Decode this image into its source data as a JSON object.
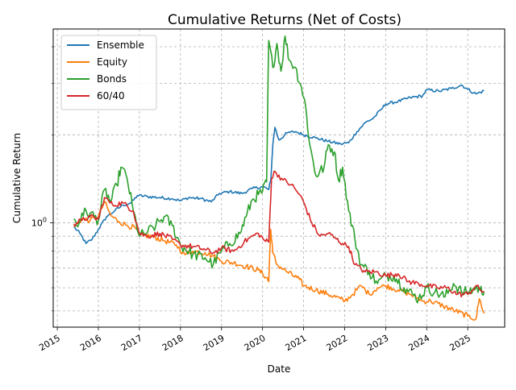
{
  "chart_data": {
    "type": "line",
    "title": "Cumulative Returns (Net of Costs)",
    "xlabel": "Date",
    "ylabel": "Cumulative Return",
    "y_scale": "log",
    "grid": true,
    "grid_style": "dashed",
    "legend_position": "top-left",
    "xlim": [
      2014.9,
      2025.9
    ],
    "ylim": [
      0.44,
      4.6
    ],
    "x_ticks": [
      {
        "value": 2015,
        "label": "2015"
      },
      {
        "value": 2016,
        "label": "2016"
      },
      {
        "value": 2017,
        "label": "2017"
      },
      {
        "value": 2018,
        "label": "2018"
      },
      {
        "value": 2019,
        "label": "2019"
      },
      {
        "value": 2020,
        "label": "2020"
      },
      {
        "value": 2021,
        "label": "2021"
      },
      {
        "value": 2022,
        "label": "2022"
      },
      {
        "value": 2023,
        "label": "2023"
      },
      {
        "value": 2024,
        "label": "2024"
      },
      {
        "value": 2025,
        "label": "2025"
      }
    ],
    "y_major_ticks": [
      {
        "value": 1,
        "label": "10^0"
      }
    ],
    "y_minor_ticks": [
      0.5,
      0.6,
      0.7,
      0.8,
      0.9,
      2,
      3,
      4
    ],
    "series": [
      {
        "name": "Ensemble",
        "color": "#1f77b4",
        "points": [
          [
            2015.4,
            0.97
          ],
          [
            2015.55,
            0.92
          ],
          [
            2015.7,
            0.85
          ],
          [
            2015.85,
            0.88
          ],
          [
            2016.0,
            0.95
          ],
          [
            2016.2,
            1.05
          ],
          [
            2016.4,
            1.1
          ],
          [
            2016.6,
            1.15
          ],
          [
            2016.8,
            1.17
          ],
          [
            2016.95,
            1.24
          ],
          [
            2017.2,
            1.23
          ],
          [
            2017.5,
            1.22
          ],
          [
            2017.8,
            1.21
          ],
          [
            2018.0,
            1.19
          ],
          [
            2018.2,
            1.22
          ],
          [
            2018.5,
            1.21
          ],
          [
            2018.75,
            1.18
          ],
          [
            2018.95,
            1.26
          ],
          [
            2019.2,
            1.28
          ],
          [
            2019.5,
            1.26
          ],
          [
            2019.75,
            1.31
          ],
          [
            2020.0,
            1.33
          ],
          [
            2020.15,
            1.3
          ],
          [
            2020.2,
            1.4
          ],
          [
            2020.25,
            1.85
          ],
          [
            2020.3,
            2.12
          ],
          [
            2020.4,
            1.92
          ],
          [
            2020.6,
            2.03
          ],
          [
            2020.8,
            2.05
          ],
          [
            2021.0,
            2.0
          ],
          [
            2021.3,
            1.95
          ],
          [
            2021.6,
            1.9
          ],
          [
            2021.9,
            1.86
          ],
          [
            2022.1,
            1.88
          ],
          [
            2022.3,
            2.05
          ],
          [
            2022.5,
            2.2
          ],
          [
            2022.7,
            2.28
          ],
          [
            2022.9,
            2.45
          ],
          [
            2023.0,
            2.55
          ],
          [
            2023.3,
            2.6
          ],
          [
            2023.6,
            2.68
          ],
          [
            2023.9,
            2.72
          ],
          [
            2024.0,
            2.85
          ],
          [
            2024.3,
            2.82
          ],
          [
            2024.6,
            2.88
          ],
          [
            2024.85,
            2.96
          ],
          [
            2025.0,
            2.86
          ],
          [
            2025.2,
            2.76
          ],
          [
            2025.4,
            2.83
          ]
        ]
      },
      {
        "name": "Equity",
        "color": "#ff7f0e",
        "points": [
          [
            2015.4,
            0.97
          ],
          [
            2015.6,
            1.03
          ],
          [
            2015.8,
            1.02
          ],
          [
            2016.0,
            1.05
          ],
          [
            2016.15,
            1.18
          ],
          [
            2016.3,
            1.06
          ],
          [
            2016.5,
            1.01
          ],
          [
            2016.7,
            0.98
          ],
          [
            2016.9,
            0.96
          ],
          [
            2017.0,
            0.91
          ],
          [
            2017.3,
            0.9
          ],
          [
            2017.6,
            0.87
          ],
          [
            2017.9,
            0.84
          ],
          [
            2018.1,
            0.78
          ],
          [
            2018.3,
            0.8
          ],
          [
            2018.6,
            0.79
          ],
          [
            2018.8,
            0.77
          ],
          [
            2019.0,
            0.74
          ],
          [
            2019.3,
            0.73
          ],
          [
            2019.6,
            0.71
          ],
          [
            2019.9,
            0.69
          ],
          [
            2020.0,
            0.67
          ],
          [
            2020.1,
            0.65
          ],
          [
            2020.15,
            0.63
          ],
          [
            2020.2,
            0.95
          ],
          [
            2020.25,
            0.79
          ],
          [
            2020.35,
            0.72
          ],
          [
            2020.6,
            0.68
          ],
          [
            2020.9,
            0.64
          ],
          [
            2021.0,
            0.61
          ],
          [
            2021.3,
            0.59
          ],
          [
            2021.6,
            0.57
          ],
          [
            2021.9,
            0.55
          ],
          [
            2022.0,
            0.54
          ],
          [
            2022.2,
            0.57
          ],
          [
            2022.4,
            0.61
          ],
          [
            2022.6,
            0.57
          ],
          [
            2022.8,
            0.6
          ],
          [
            2023.0,
            0.61
          ],
          [
            2023.3,
            0.59
          ],
          [
            2023.6,
            0.57
          ],
          [
            2023.9,
            0.54
          ],
          [
            2024.1,
            0.54
          ],
          [
            2024.4,
            0.52
          ],
          [
            2024.7,
            0.5
          ],
          [
            2025.0,
            0.48
          ],
          [
            2025.2,
            0.47
          ],
          [
            2025.28,
            0.55
          ],
          [
            2025.4,
            0.49
          ]
        ]
      },
      {
        "name": "Bonds",
        "color": "#2ca02c",
        "points": [
          [
            2015.4,
            1.03
          ],
          [
            2015.5,
            0.97
          ],
          [
            2015.6,
            1.08
          ],
          [
            2015.8,
            1.08
          ],
          [
            2016.0,
            1.02
          ],
          [
            2016.15,
            1.3
          ],
          [
            2016.3,
            1.18
          ],
          [
            2016.45,
            1.35
          ],
          [
            2016.55,
            1.55
          ],
          [
            2016.7,
            1.42
          ],
          [
            2016.85,
            1.1
          ],
          [
            2017.0,
            0.9
          ],
          [
            2017.2,
            0.93
          ],
          [
            2017.4,
            0.98
          ],
          [
            2017.6,
            1.05
          ],
          [
            2017.8,
            0.98
          ],
          [
            2018.0,
            0.84
          ],
          [
            2018.3,
            0.78
          ],
          [
            2018.6,
            0.76
          ],
          [
            2018.8,
            0.72
          ],
          [
            2019.0,
            0.8
          ],
          [
            2019.2,
            0.85
          ],
          [
            2019.45,
            0.92
          ],
          [
            2019.6,
            1.05
          ],
          [
            2019.75,
            1.2
          ],
          [
            2019.9,
            1.25
          ],
          [
            2020.0,
            1.28
          ],
          [
            2020.1,
            1.38
          ],
          [
            2020.15,
            4.2
          ],
          [
            2020.25,
            3.4
          ],
          [
            2020.35,
            4.1
          ],
          [
            2020.45,
            3.3
          ],
          [
            2020.55,
            4.35
          ],
          [
            2020.65,
            3.6
          ],
          [
            2020.8,
            3.4
          ],
          [
            2020.95,
            2.9
          ],
          [
            2021.05,
            2.5
          ],
          [
            2021.15,
            1.85
          ],
          [
            2021.3,
            1.45
          ],
          [
            2021.5,
            1.55
          ],
          [
            2021.6,
            1.85
          ],
          [
            2021.75,
            1.75
          ],
          [
            2021.85,
            1.4
          ],
          [
            2021.95,
            1.55
          ],
          [
            2022.1,
            1.1
          ],
          [
            2022.25,
            0.88
          ],
          [
            2022.4,
            0.72
          ],
          [
            2022.6,
            0.68
          ],
          [
            2022.8,
            0.62
          ],
          [
            2023.0,
            0.66
          ],
          [
            2023.2,
            0.66
          ],
          [
            2023.45,
            0.6
          ],
          [
            2023.65,
            0.57
          ],
          [
            2023.8,
            0.55
          ],
          [
            2024.0,
            0.6
          ],
          [
            2024.2,
            0.58
          ],
          [
            2024.45,
            0.56
          ],
          [
            2024.65,
            0.62
          ],
          [
            2024.85,
            0.58
          ],
          [
            2025.0,
            0.58
          ],
          [
            2025.2,
            0.6
          ],
          [
            2025.3,
            0.59
          ],
          [
            2025.4,
            0.58
          ]
        ]
      },
      {
        "name": "60/40",
        "color": "#d62728",
        "points": [
          [
            2015.4,
            0.99
          ],
          [
            2015.6,
            1.02
          ],
          [
            2015.8,
            1.05
          ],
          [
            2016.0,
            1.03
          ],
          [
            2016.15,
            1.22
          ],
          [
            2016.35,
            1.15
          ],
          [
            2016.6,
            1.17
          ],
          [
            2016.85,
            1.1
          ],
          [
            2017.0,
            0.92
          ],
          [
            2017.2,
            0.9
          ],
          [
            2017.5,
            0.92
          ],
          [
            2017.8,
            0.88
          ],
          [
            2018.0,
            0.84
          ],
          [
            2018.3,
            0.83
          ],
          [
            2018.6,
            0.81
          ],
          [
            2018.8,
            0.79
          ],
          [
            2019.0,
            0.82
          ],
          [
            2019.3,
            0.8
          ],
          [
            2019.55,
            0.86
          ],
          [
            2019.75,
            0.9
          ],
          [
            2019.9,
            0.92
          ],
          [
            2020.05,
            0.87
          ],
          [
            2020.15,
            0.86
          ],
          [
            2020.22,
            1.42
          ],
          [
            2020.3,
            1.5
          ],
          [
            2020.5,
            1.4
          ],
          [
            2020.7,
            1.35
          ],
          [
            2020.9,
            1.25
          ],
          [
            2021.0,
            1.18
          ],
          [
            2021.2,
            1.0
          ],
          [
            2021.4,
            0.9
          ],
          [
            2021.6,
            0.92
          ],
          [
            2021.8,
            0.88
          ],
          [
            2021.95,
            0.85
          ],
          [
            2022.1,
            0.83
          ],
          [
            2022.25,
            0.72
          ],
          [
            2022.5,
            0.68
          ],
          [
            2022.75,
            0.68
          ],
          [
            2023.0,
            0.66
          ],
          [
            2023.3,
            0.67
          ],
          [
            2023.55,
            0.63
          ],
          [
            2023.8,
            0.62
          ],
          [
            2024.0,
            0.61
          ],
          [
            2024.25,
            0.6
          ],
          [
            2024.5,
            0.6
          ],
          [
            2024.75,
            0.57
          ],
          [
            2025.0,
            0.57
          ],
          [
            2025.2,
            0.61
          ],
          [
            2025.3,
            0.59
          ],
          [
            2025.4,
            0.58
          ]
        ]
      }
    ]
  }
}
